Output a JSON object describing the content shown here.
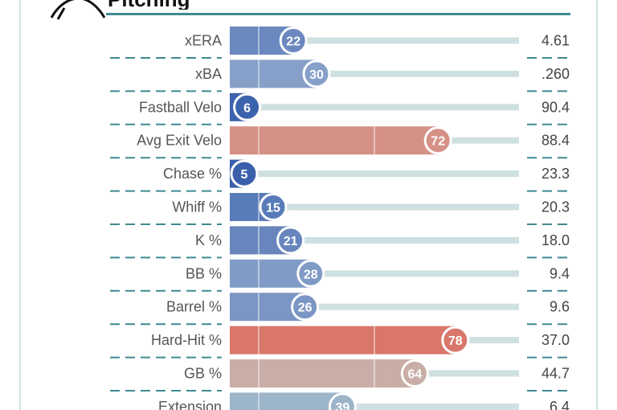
{
  "header": {
    "title": "Pitching"
  },
  "chart_data": {
    "type": "bar",
    "orientation": "horizontal",
    "title": "Pitching",
    "xlim": [
      0,
      100
    ],
    "metrics": [
      {
        "label": "xERA",
        "percentile": 22,
        "value": "4.61",
        "color": "#6b89bf"
      },
      {
        "label": "xBA",
        "percentile": 30,
        "value": ".260",
        "color": "#86a0c9"
      },
      {
        "label": "Fastball Velo",
        "percentile": 6,
        "value": "90.4",
        "color": "#3b62ad"
      },
      {
        "label": "Avg Exit Velo",
        "percentile": 72,
        "value": "88.4",
        "color": "#d69186"
      },
      {
        "label": "Chase %",
        "percentile": 5,
        "value": "23.3",
        "color": "#3a60ab"
      },
      {
        "label": "Whiff %",
        "percentile": 15,
        "value": "20.3",
        "color": "#587bb9"
      },
      {
        "label": "K %",
        "percentile": 21,
        "value": "18.0",
        "color": "#6886bd"
      },
      {
        "label": "BB %",
        "percentile": 28,
        "value": "9.4",
        "color": "#809bc6"
      },
      {
        "label": "Barrel %",
        "percentile": 26,
        "value": "9.6",
        "color": "#7b96c4"
      },
      {
        "label": "Hard-Hit %",
        "percentile": 78,
        "value": "37.0",
        "color": "#d9776b"
      },
      {
        "label": "GB %",
        "percentile": 64,
        "value": "44.7",
        "color": "#c9aea7"
      },
      {
        "label": "Extension",
        "percentile": 39,
        "value": "6.4",
        "color": "#9db5c9"
      }
    ]
  }
}
